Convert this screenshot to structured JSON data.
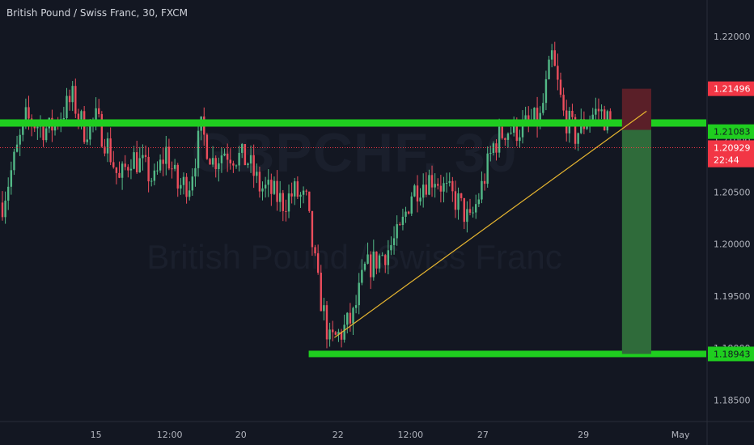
{
  "title": "British Pound / Swiss Franc, 30, FXCM",
  "watermark": {
    "symbol": "GBPCHF, 30",
    "name": "British Pound / Swiss Franc"
  },
  "colors": {
    "background": "#131722",
    "axis_text": "#b2b5be",
    "up_candle": "#53b987",
    "down_candle": "#eb4d5c",
    "level_line": "#1fce1f",
    "trendline": "#e6b530",
    "target_zone": "#2f6b3a",
    "stop_zone": "#5a1f28",
    "price_line": "#f23645"
  },
  "chart_data": {
    "type": "candlestick",
    "symbol": "GBPCHF",
    "interval": "30",
    "source": "FXCM",
    "ylim": [
      1.183,
      1.2235
    ],
    "y_ticks": [
      1.185,
      1.19,
      1.195,
      1.2,
      1.205,
      1.21,
      1.215,
      1.22
    ],
    "y_tick_labels": [
      "1.18500",
      "1.19000",
      "1.19500",
      "1.20000",
      "1.20500",
      "1.21000",
      "1.21500",
      "1.22000"
    ],
    "x_labels": [
      {
        "label": "15",
        "bar": 8.0
      },
      {
        "label": "12:00",
        "bar": 14.3
      },
      {
        "label": "20",
        "bar": 20.4
      },
      {
        "label": "22",
        "bar": 28.7
      },
      {
        "label": "12:00",
        "bar": 34.9
      },
      {
        "label": "27",
        "bar": 41.1
      },
      {
        "label": "29",
        "bar": 49.7
      },
      {
        "label": "May",
        "bar": 58.0
      }
    ],
    "bar_count": 60,
    "ohlc_path": [
      [
        0,
        1.204
      ],
      [
        2,
        1.212
      ],
      [
        4,
        1.211
      ],
      [
        6,
        1.214
      ],
      [
        7,
        1.211
      ],
      [
        8,
        1.212
      ],
      [
        9,
        1.2095
      ],
      [
        10,
        1.206
      ],
      [
        11,
        1.2085
      ],
      [
        12,
        1.2075
      ],
      [
        13,
        1.206
      ],
      [
        14,
        1.209
      ],
      [
        15,
        1.2055
      ],
      [
        16,
        1.206
      ],
      [
        17,
        1.211
      ],
      [
        18,
        1.208
      ],
      [
        19,
        1.209
      ],
      [
        21,
        1.208
      ],
      [
        22,
        1.2055
      ],
      [
        23,
        1.205
      ],
      [
        24,
        1.204
      ],
      [
        25,
        1.205
      ],
      [
        26,
        1.204
      ],
      [
        27,
        1.196
      ],
      [
        28,
        1.1905
      ],
      [
        29,
        1.1915
      ],
      [
        30,
        1.193
      ],
      [
        31,
        1.1975
      ],
      [
        32,
        1.1985
      ],
      [
        33,
        1.1995
      ],
      [
        34,
        1.201
      ],
      [
        35,
        1.205
      ],
      [
        36,
        1.206
      ],
      [
        37,
        1.2065
      ],
      [
        38,
        1.205
      ],
      [
        39,
        1.204
      ],
      [
        40,
        1.202
      ],
      [
        41,
        1.2055
      ],
      [
        42,
        1.2095
      ],
      [
        43,
        1.211
      ],
      [
        44,
        1.211
      ],
      [
        45,
        1.2115
      ],
      [
        46,
        1.212
      ],
      [
        47,
        1.218
      ],
      [
        48,
        1.2125
      ],
      [
        49,
        1.2105
      ],
      [
        50,
        1.212
      ],
      [
        51,
        1.2129
      ],
      [
        52,
        1.2115
      ]
    ],
    "horizontal_levels": [
      {
        "name": "resistance-support",
        "price": 1.2117
      },
      {
        "name": "target",
        "price": 1.18943
      }
    ],
    "trendline": {
      "from": {
        "bar": 28.4,
        "price": 1.191
      },
      "to": {
        "bar": 55.1,
        "price": 1.2128
      }
    },
    "short_position": {
      "entry": 1.211,
      "stop": 1.21496,
      "target": 1.18943,
      "start_bar": 53.0,
      "end_bar": 55.5
    },
    "current_price": 1.20929,
    "price_labels": [
      {
        "label": "1.21496",
        "price": 1.21496,
        "kind": "stop"
      },
      {
        "label": "1.21083",
        "price": 1.21083,
        "kind": "entry"
      },
      {
        "label": "1.20929",
        "price": 1.20929,
        "kind": "current"
      },
      {
        "label": "22:44",
        "price": 1.2081,
        "kind": "countdown"
      },
      {
        "label": "1.18943",
        "price": 1.18943,
        "kind": "target"
      }
    ]
  }
}
